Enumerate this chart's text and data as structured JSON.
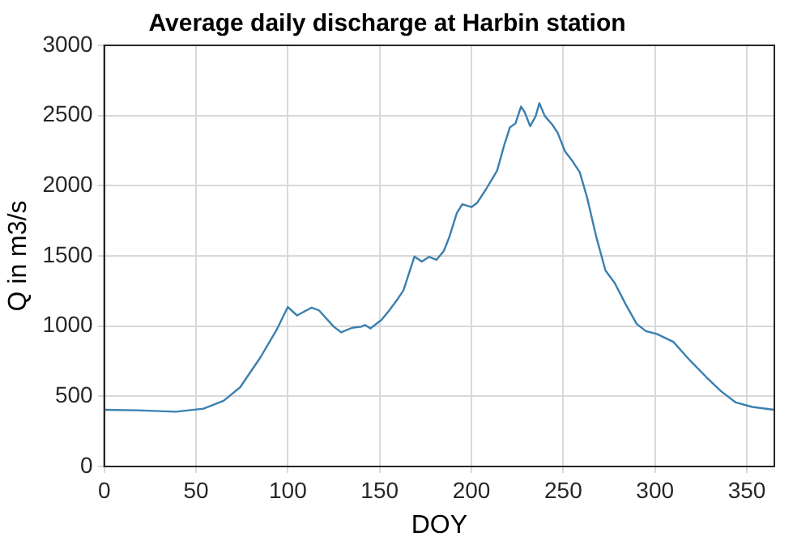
{
  "chart_data": {
    "type": "line",
    "title": "Average daily discharge at Harbin station",
    "xlabel": "DOY",
    "ylabel": "Q in m3/s",
    "xlim": [
      0,
      365
    ],
    "xticks": [
      0,
      50,
      100,
      150,
      200,
      250,
      300,
      350
    ],
    "ylim": [
      0,
      3000
    ],
    "yticks": [
      0,
      500,
      1000,
      1500,
      2000,
      2500,
      3000
    ],
    "grid": true,
    "marker": "none",
    "line_style": "solid",
    "series": [
      {
        "color": "#3a7fb0",
        "x": [
          0,
          18,
          39,
          54,
          65,
          74,
          85,
          94,
          100,
          105,
          113,
          117,
          125,
          129,
          135,
          140,
          142,
          145,
          151,
          155,
          160,
          163,
          166,
          169,
          173,
          177,
          181,
          185,
          188,
          192,
          195,
          200,
          203,
          208,
          214,
          218,
          221,
          224,
          227,
          229,
          232,
          235,
          237,
          240,
          244,
          247,
          251,
          255,
          259,
          263,
          268,
          273,
          278,
          284,
          290,
          295,
          301,
          310,
          319,
          328,
          336,
          344,
          353,
          365
        ],
        "values": [
          404,
          400,
          390,
          412,
          468,
          564,
          776,
          976,
          1136,
          1076,
          1132,
          1112,
          996,
          956,
          988,
          996,
          1008,
          984,
          1044,
          1108,
          1196,
          1256,
          1376,
          1496,
          1460,
          1494,
          1472,
          1536,
          1636,
          1804,
          1868,
          1848,
          1876,
          1976,
          2108,
          2296,
          2416,
          2444,
          2564,
          2524,
          2424,
          2496,
          2588,
          2496,
          2436,
          2376,
          2244,
          2176,
          2096,
          1916,
          1636,
          1396,
          1308,
          1156,
          1016,
          964,
          944,
          888,
          756,
          636,
          536,
          456,
          424,
          404
        ]
      }
    ]
  }
}
